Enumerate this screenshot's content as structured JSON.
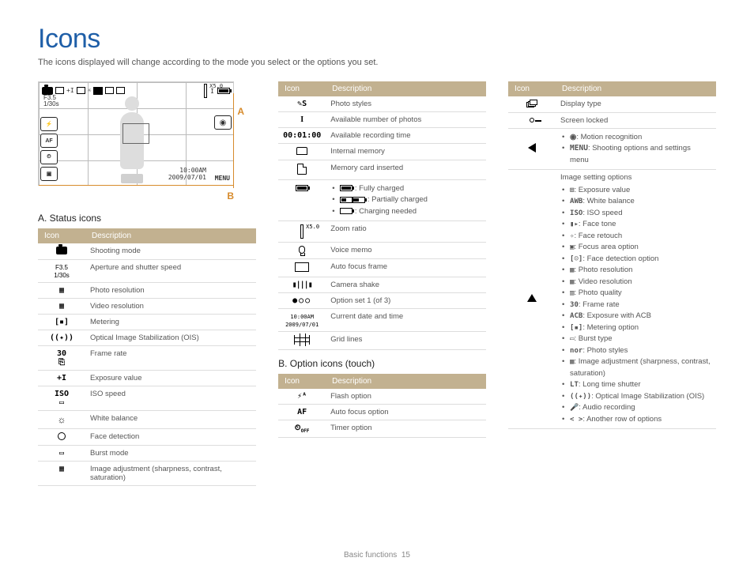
{
  "title": "Icons",
  "subtitle": "The icons displayed will change according to the mode you select or the options you set.",
  "footer_section": "Basic functions",
  "footer_page": "15",
  "camera": {
    "fstop": "F3.5",
    "shutter": "1/30s",
    "zoom": "X5.0",
    "time": "10:00AM",
    "date": "2009/07/01",
    "menu": "MENU"
  },
  "callouts": {
    "a": "A",
    "b": "B"
  },
  "headers": {
    "icon": "Icon",
    "description": "Description"
  },
  "sections": {
    "a_title": "A. Status icons",
    "b_title": "B. Option icons (touch)"
  },
  "status_rows": [
    {
      "desc": "Shooting mode"
    },
    {
      "desc": "Aperture and shutter speed"
    },
    {
      "desc": "Photo resolution"
    },
    {
      "desc": "Video resolution"
    },
    {
      "desc": "Metering"
    },
    {
      "desc": "Optical Image Stabilization (OIS)"
    },
    {
      "desc": "Frame rate"
    },
    {
      "desc": "Exposure value"
    },
    {
      "desc": "ISO speed"
    },
    {
      "desc": "White balance"
    },
    {
      "desc": "Face detection"
    },
    {
      "desc": "Burst mode"
    },
    {
      "desc": "Image adjustment (sharpness, contrast, saturation)"
    }
  ],
  "mid_rows": [
    {
      "desc": "Photo styles"
    },
    {
      "desc": "Available number of photos",
      "icon_text": "I"
    },
    {
      "desc": "Available recording time",
      "icon_text": "00:01:00"
    },
    {
      "desc": "Internal memory"
    },
    {
      "desc": "Memory card inserted"
    },
    {
      "desc_battery": true,
      "b1": ": Fully charged",
      "b2": ": Partially charged",
      "b3": ": Charging needed"
    },
    {
      "desc": "Zoom ratio"
    },
    {
      "desc": "Voice memo"
    },
    {
      "desc": "Auto focus frame"
    },
    {
      "desc": "Camera shake"
    },
    {
      "desc": "Option set 1 (of 3)"
    },
    {
      "desc": "Current date and time",
      "icon_text2a": "10:00AM",
      "icon_text2b": "2009/07/01"
    },
    {
      "desc": "Grid lines"
    }
  ],
  "option_rows": [
    {
      "desc": "Flash option",
      "icon_text": "⚡ᴬ"
    },
    {
      "desc": "Auto focus option",
      "icon_text": "AF"
    },
    {
      "desc": "Timer option"
    }
  ],
  "right_rows": [
    {
      "desc": "Display type"
    },
    {
      "desc": "Screen locked"
    },
    {
      "arrow_left": true,
      "l1": ": Motion recognition",
      "l2_pre": "MENU",
      "l2": ": Shooting options and settings menu"
    },
    {
      "image_settings": true
    }
  ],
  "image_settings_title": "Image setting options",
  "image_settings": [
    ": Exposure value",
    ": White balance",
    ": ISO speed",
    ": Face tone",
    ": Face retouch",
    ": Focus area option",
    ": Face detection option",
    ": Photo resolution",
    ": Video resolution",
    ": Photo quality",
    ": Frame rate",
    ": Exposure with ACB",
    ": Metering option",
    ": Burst type",
    ": Photo styles",
    ": Image adjustment (sharpness, contrast, saturation)",
    ": Long time shutter",
    ": Optical Image Stabilization (OIS)",
    ": Audio recording",
    ": Another row of options"
  ],
  "image_settings_prefix": [
    "⊞",
    "AWB",
    "ISO",
    "▮▸",
    "✧",
    "▣",
    "[☺]",
    "▦",
    "▦",
    "▥",
    "30",
    "ACB",
    "[▪]",
    "▭",
    "nor",
    "▦",
    "LT",
    "((✦))",
    "🎤",
    "< >"
  ],
  "header_bg": "#c2b190",
  "accent_color": "#1f5fa8",
  "callout_color": "#d78b2c"
}
